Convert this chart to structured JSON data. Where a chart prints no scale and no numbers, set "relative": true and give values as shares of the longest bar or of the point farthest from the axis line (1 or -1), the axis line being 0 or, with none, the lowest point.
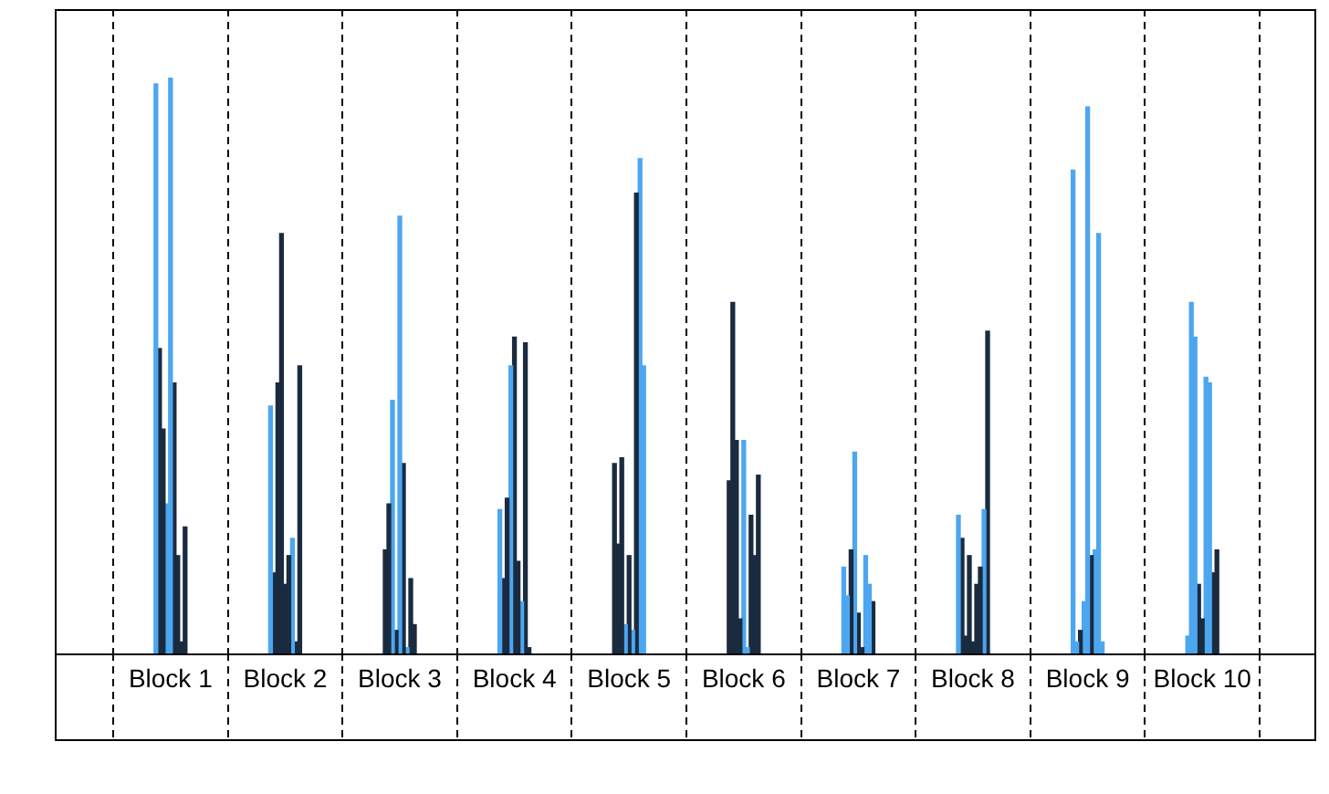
{
  "chart_data": {
    "type": "bar",
    "relative": true,
    "grid": "x",
    "categories": [
      "Block 1",
      "Block 2",
      "Block 3",
      "Block 4",
      "Block 5",
      "Block 6",
      "Block 7",
      "Block 8",
      "Block 9",
      "Block 10"
    ],
    "series": [
      {
        "values": [
          0.99,
          0.43,
          0.18,
          0.25,
          0.33,
          0.3,
          0.15,
          0.24,
          0.84,
          0.03
        ],
        "colors": [
          "#4da6f0",
          "#4da6f0",
          "#1b2b3f",
          "#4da6f0",
          "#1b2b3f",
          "#1b2b3f",
          "#4da6f0",
          "#4da6f0",
          "#4da6f0",
          "#4da6f0"
        ]
      },
      {
        "values": [
          0.53,
          0.14,
          0.26,
          0.13,
          0.19,
          0.61,
          0.1,
          0.2,
          0.02,
          0.61
        ],
        "colors": [
          "#1b2b3f",
          "#1b2b3f",
          "#1b2b3f",
          "#1b2b3f",
          "#1b2b3f",
          "#1b2b3f",
          "#4da6f0",
          "#1b2b3f",
          "#4da6f0",
          "#4da6f0"
        ]
      },
      {
        "values": [
          0.39,
          0.47,
          0.44,
          0.27,
          0.34,
          0.37,
          0.18,
          0.03,
          0.04,
          0.55
        ],
        "colors": [
          "#1b2b3f",
          "#1b2b3f",
          "#4da6f0",
          "#1b2b3f",
          "#1b2b3f",
          "#1b2b3f",
          "#1b2b3f",
          "#1b2b3f",
          "#1b2b3f",
          "#4da6f0"
        ]
      },
      {
        "values": [
          0.26,
          0.73,
          0.04,
          0.5,
          0.05,
          0.06,
          0.35,
          0.17,
          0.09,
          0.12
        ],
        "colors": [
          "#4da6f0",
          "#1b2b3f",
          "#1b2b3f",
          "#4da6f0",
          "#4da6f0",
          "#1b2b3f",
          "#4da6f0",
          "#1b2b3f",
          "#4da6f0",
          "#1b2b3f"
        ]
      },
      {
        "values": [
          1,
          0.12,
          0.76,
          0.55,
          0.17,
          0.37,
          0.07,
          0.02,
          0.95,
          0.06
        ],
        "colors": [
          "#4da6f0",
          "#1b2b3f",
          "#4da6f0",
          "#1b2b3f",
          "#1b2b3f",
          "#4da6f0",
          "#1b2b3f",
          "#1b2b3f",
          "#4da6f0",
          "#1b2b3f"
        ]
      },
      {
        "values": [
          0.47,
          0.17,
          0.33,
          0.16,
          0.04,
          0.01,
          0.01,
          0.12,
          0.17,
          0.48
        ],
        "colors": [
          "#1b2b3f",
          "#1b2b3f",
          "#1b2b3f",
          "#1b2b3f",
          "#4da6f0",
          "#4da6f0",
          "#1b2b3f",
          "#1b2b3f",
          "#1b2b3f",
          "#4da6f0"
        ]
      },
      {
        "values": [
          0.17,
          0.2,
          0.01,
          0.09,
          0.8,
          0.24,
          0.17,
          0.15,
          0.18,
          0.47
        ],
        "colors": [
          "#1b2b3f",
          "#4da6f0",
          "#4da6f0",
          "#4da6f0",
          "#1b2b3f",
          "#1b2b3f",
          "#4da6f0",
          "#1b2b3f",
          "#4da6f0",
          "#4da6f0"
        ]
      },
      {
        "values": [
          0.02,
          0.02,
          0.13,
          0.54,
          0.86,
          0.17,
          0.12,
          0.25,
          0.73,
          0.14
        ],
        "colors": [
          "#1b2b3f",
          "#1b2b3f",
          "#1b2b3f",
          "#1b2b3f",
          "#4da6f0",
          "#1b2b3f",
          "#4da6f0",
          "#4da6f0",
          "#4da6f0",
          "#1b2b3f"
        ]
      },
      {
        "values": [
          0.22,
          0.5,
          0.05,
          0.01,
          0.5,
          0.31,
          0.09,
          0.56,
          0.02,
          0.18
        ],
        "colors": [
          "#1b2b3f",
          "#1b2b3f",
          "#1b2b3f",
          "#1b2b3f",
          "#4da6f0",
          "#1b2b3f",
          "#1b2b3f",
          "#1b2b3f",
          "#4da6f0",
          "#1b2b3f"
        ]
      }
    ]
  }
}
